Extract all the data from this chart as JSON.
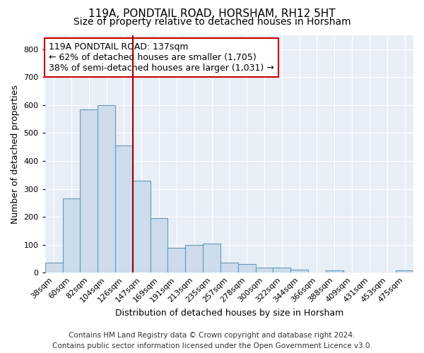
{
  "title_line1": "119A, PONDTAIL ROAD, HORSHAM, RH12 5HT",
  "title_line2": "Size of property relative to detached houses in Horsham",
  "xlabel": "Distribution of detached houses by size in Horsham",
  "ylabel": "Number of detached properties",
  "bar_color": "#ccdcec",
  "bar_edge_color": "#6699bb",
  "bg_color": "#e8eef6",
  "categories": [
    "38sqm",
    "60sqm",
    "82sqm",
    "104sqm",
    "126sqm",
    "147sqm",
    "169sqm",
    "191sqm",
    "213sqm",
    "235sqm",
    "257sqm",
    "278sqm",
    "300sqm",
    "322sqm",
    "344sqm",
    "366sqm",
    "388sqm",
    "409sqm",
    "431sqm",
    "453sqm",
    "475sqm"
  ],
  "values": [
    35,
    265,
    585,
    600,
    455,
    330,
    195,
    90,
    100,
    105,
    37,
    32,
    17,
    17,
    11,
    0,
    7,
    0,
    0,
    0,
    7
  ],
  "ylim": [
    0,
    850
  ],
  "yticks": [
    0,
    100,
    200,
    300,
    400,
    500,
    600,
    700,
    800
  ],
  "annotation_text": "119A PONDTAIL ROAD: 137sqm\n← 62% of detached houses are smaller (1,705)\n38% of semi-detached houses are larger (1,031) →",
  "vline_color": "#990000",
  "footer_line1": "Contains HM Land Registry data © Crown copyright and database right 2024.",
  "footer_line2": "Contains public sector information licensed under the Open Government Licence v3.0.",
  "grid_color": "#ffffff",
  "title_fontsize": 11,
  "subtitle_fontsize": 10,
  "axis_label_fontsize": 9,
  "tick_fontsize": 8,
  "annotation_fontsize": 9,
  "footer_fontsize": 7.5,
  "vline_bar_index": 4
}
